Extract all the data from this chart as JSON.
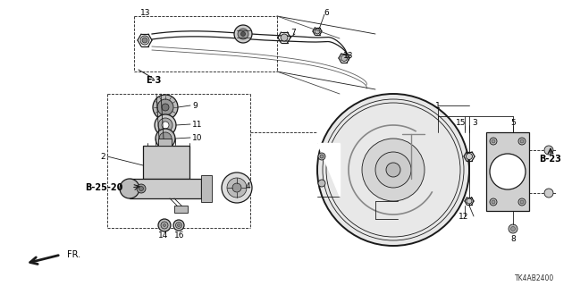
{
  "bg_color": "#ffffff",
  "line_color": "#1a1a1a",
  "diagram_code": "TK4AB2400",
  "ref_e3": "E-3",
  "ref_b23": "B-23",
  "ref_b2520": "B-25-20",
  "ref_fr": "FR."
}
